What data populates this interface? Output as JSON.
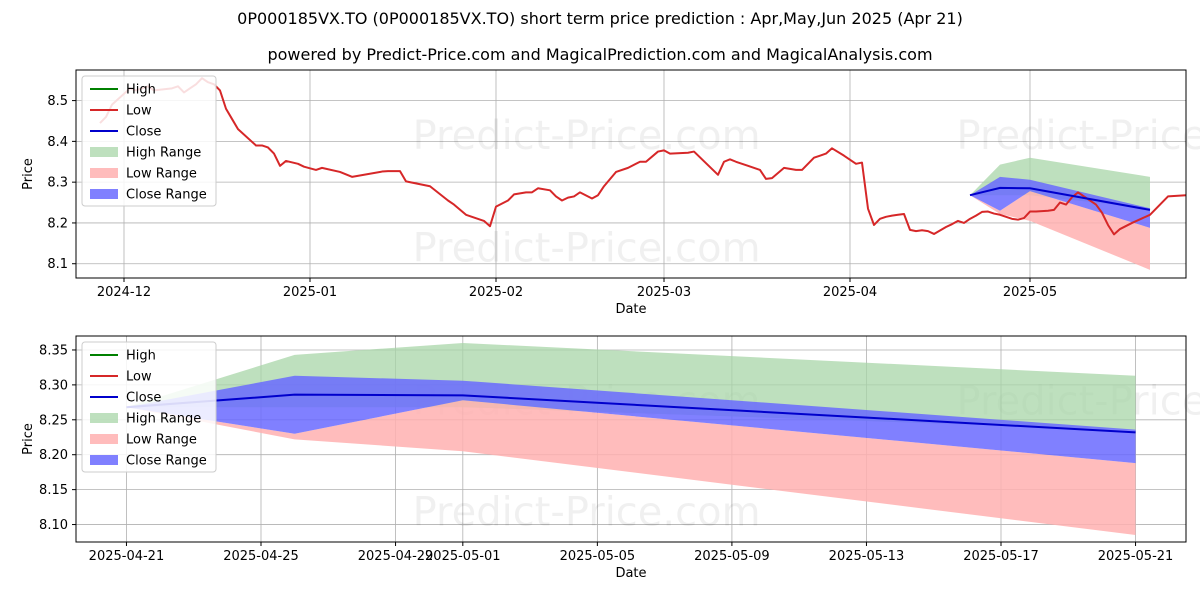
{
  "header": {
    "title": "0P000185VX.TO (0P000185VX.TO) short term price prediction : Apr,May,Jun 2025 (Apr 21)",
    "subtitle": "powered by Predict-Price.com and MagicalPrediction.com and MagicalAnalysis.com"
  },
  "watermark": "Predict-Price.com",
  "colors": {
    "high": "#008000",
    "low": "#d62728",
    "close": "#0000cc",
    "high_range": "#a8d5a8",
    "low_range": "#ffb0b0",
    "close_range": "#6a6aff"
  },
  "chart_data": [
    {
      "type": "line",
      "xlabel": "Date",
      "ylabel": "Price",
      "x_tick_labels": [
        "2024-12",
        "2025-01",
        "2025-02",
        "2025-03",
        "2025-04",
        "2025-05"
      ],
      "x_ticks": [
        "2024-12-01",
        "2025-01-01",
        "2025-02-01",
        "2025-03-01",
        "2025-04-01",
        "2025-05-01"
      ],
      "y_ticks": [
        8.1,
        8.2,
        8.3,
        8.4,
        8.5
      ],
      "xlim": [
        "2024-11-23",
        "2025-05-27"
      ],
      "ylim": [
        8.065,
        8.575
      ],
      "grid": true,
      "legend": {
        "position": "top-left",
        "entries": [
          "High",
          "Low",
          "Close",
          "High Range",
          "Low Range",
          "Close Range"
        ]
      },
      "low_series": {
        "name": "Low",
        "points": [
          [
            "2024-11-27",
            8.445
          ],
          [
            "2024-11-28",
            8.46
          ],
          [
            "2024-11-29",
            8.49
          ],
          [
            "2024-12-02",
            8.53
          ],
          [
            "2024-12-03",
            8.525
          ],
          [
            "2024-12-04",
            8.53
          ],
          [
            "2024-12-05",
            8.535
          ],
          [
            "2024-12-06",
            8.525
          ],
          [
            "2024-12-09",
            8.53
          ],
          [
            "2024-12-10",
            8.535
          ],
          [
            "2024-12-11",
            8.52
          ],
          [
            "2024-12-12",
            8.53
          ],
          [
            "2024-12-13",
            8.54
          ],
          [
            "2024-12-14",
            8.555
          ],
          [
            "2024-12-15",
            8.545
          ],
          [
            "2024-12-16",
            8.54
          ],
          [
            "2024-12-17",
            8.525
          ],
          [
            "2024-12-18",
            8.48
          ],
          [
            "2024-12-19",
            8.455
          ],
          [
            "2024-12-20",
            8.43
          ],
          [
            "2024-12-23",
            8.39
          ],
          [
            "2024-12-24",
            8.39
          ],
          [
            "2024-12-25",
            8.385
          ],
          [
            "2024-12-26",
            8.37
          ],
          [
            "2024-12-27",
            8.34
          ],
          [
            "2024-12-28",
            8.352
          ],
          [
            "2024-12-30",
            8.345
          ],
          [
            "2024-12-31",
            8.338
          ],
          [
            "2025-01-02",
            8.33
          ],
          [
            "2025-01-03",
            8.335
          ],
          [
            "2025-01-06",
            8.325
          ],
          [
            "2025-01-08",
            8.313
          ],
          [
            "2025-01-13",
            8.326
          ],
          [
            "2025-01-14",
            8.327
          ],
          [
            "2025-01-16",
            8.327
          ],
          [
            "2025-01-17",
            8.302
          ],
          [
            "2025-01-21",
            8.29
          ],
          [
            "2025-01-24",
            8.255
          ],
          [
            "2025-01-25",
            8.245
          ],
          [
            "2025-01-27",
            8.22
          ],
          [
            "2025-01-30",
            8.205
          ],
          [
            "2025-01-31",
            8.192
          ],
          [
            "2025-02-01",
            8.24
          ],
          [
            "2025-02-03",
            8.255
          ],
          [
            "2025-02-04",
            8.27
          ],
          [
            "2025-02-06",
            8.275
          ],
          [
            "2025-02-07",
            8.275
          ],
          [
            "2025-02-08",
            8.285
          ],
          [
            "2025-02-10",
            8.28
          ],
          [
            "2025-02-11",
            8.265
          ],
          [
            "2025-02-12",
            8.255
          ],
          [
            "2025-02-13",
            8.262
          ],
          [
            "2025-02-14",
            8.265
          ],
          [
            "2025-02-15",
            8.275
          ],
          [
            "2025-02-17",
            8.26
          ],
          [
            "2025-02-18",
            8.268
          ],
          [
            "2025-02-19",
            8.29
          ],
          [
            "2025-02-21",
            8.325
          ],
          [
            "2025-02-23",
            8.335
          ],
          [
            "2025-02-25",
            8.35
          ],
          [
            "2025-02-26",
            8.35
          ],
          [
            "2025-02-28",
            8.375
          ],
          [
            "2025-03-01",
            8.378
          ],
          [
            "2025-03-02",
            8.37
          ],
          [
            "2025-03-05",
            8.372
          ],
          [
            "2025-03-06",
            8.375
          ],
          [
            "2025-03-10",
            8.318
          ],
          [
            "2025-03-11",
            8.35
          ],
          [
            "2025-03-12",
            8.356
          ],
          [
            "2025-03-13",
            8.35
          ],
          [
            "2025-03-15",
            8.34
          ],
          [
            "2025-03-17",
            8.33
          ],
          [
            "2025-03-18",
            8.308
          ],
          [
            "2025-03-19",
            8.31
          ],
          [
            "2025-03-21",
            8.335
          ],
          [
            "2025-03-23",
            8.33
          ],
          [
            "2025-03-24",
            8.33
          ],
          [
            "2025-03-26",
            8.36
          ],
          [
            "2025-03-27",
            8.365
          ],
          [
            "2025-03-28",
            8.37
          ],
          [
            "2025-03-29",
            8.383
          ],
          [
            "2025-03-31",
            8.365
          ],
          [
            "2025-04-02",
            8.345
          ],
          [
            "2025-04-03",
            8.348
          ],
          [
            "2025-04-04",
            8.235
          ],
          [
            "2025-04-05",
            8.195
          ],
          [
            "2025-04-06",
            8.21
          ],
          [
            "2025-04-07",
            8.215
          ],
          [
            "2025-04-08",
            8.218
          ],
          [
            "2025-04-09",
            8.22
          ],
          [
            "2025-04-10",
            8.222
          ],
          [
            "2025-04-11",
            8.183
          ],
          [
            "2025-04-12",
            8.18
          ],
          [
            "2025-04-13",
            8.182
          ],
          [
            "2025-04-14",
            8.18
          ],
          [
            "2025-04-15",
            8.173
          ],
          [
            "2025-04-17",
            8.19
          ],
          [
            "2025-04-18",
            8.197
          ],
          [
            "2025-04-19",
            8.205
          ],
          [
            "2025-04-20",
            8.2
          ],
          [
            "2025-04-21",
            8.21
          ],
          [
            "2025-04-22",
            8.218
          ],
          [
            "2025-04-23",
            8.227
          ],
          [
            "2025-04-24",
            8.228
          ],
          [
            "2025-04-25",
            8.223
          ],
          [
            "2025-04-26",
            8.22
          ],
          [
            "2025-04-27",
            8.215
          ],
          [
            "2025-04-28",
            8.21
          ],
          [
            "2025-04-29",
            8.208
          ],
          [
            "2025-04-30",
            8.212
          ],
          [
            "2025-05-01",
            8.228
          ],
          [
            "2025-05-02",
            8.228
          ],
          [
            "2025-05-04",
            8.23
          ],
          [
            "2025-05-05",
            8.232
          ],
          [
            "2025-05-06",
            8.25
          ],
          [
            "2025-05-07",
            8.245
          ],
          [
            "2025-05-08",
            8.263
          ],
          [
            "2025-05-09",
            8.275
          ],
          [
            "2025-05-10",
            8.265
          ],
          [
            "2025-05-12",
            8.245
          ],
          [
            "2025-05-13",
            8.225
          ],
          [
            "2025-05-14",
            8.195
          ],
          [
            "2025-05-15",
            8.172
          ],
          [
            "2025-05-16",
            8.185
          ],
          [
            "2025-05-18",
            8.2
          ],
          [
            "2025-05-21",
            8.22
          ],
          [
            "2025-05-24",
            8.265
          ],
          [
            "2025-05-27",
            8.268
          ]
        ]
      }
    },
    {
      "type": "area",
      "xlabel": "Date",
      "ylabel": "Price",
      "x_tick_labels": [
        "2025-04-21",
        "2025-04-25",
        "2025-04-29",
        "2025-05-01",
        "2025-05-05",
        "2025-05-09",
        "2025-05-13",
        "2025-05-17",
        "2025-05-21"
      ],
      "x_ticks": [
        "2025-04-21",
        "2025-04-25",
        "2025-04-29",
        "2025-05-01",
        "2025-05-05",
        "2025-05-09",
        "2025-05-13",
        "2025-05-17",
        "2025-05-21"
      ],
      "y_ticks": [
        8.1,
        8.15,
        8.2,
        8.25,
        8.3,
        8.35
      ],
      "xlim": [
        "2025-04-19.5",
        "2025-05-22.5"
      ],
      "ylim": [
        8.075,
        8.37
      ],
      "grid": true,
      "legend": {
        "position": "top-left",
        "entries": [
          "High",
          "Low",
          "Close",
          "High Range",
          "Low Range",
          "Close Range"
        ]
      },
      "x": [
        "2025-04-21",
        "2025-04-26",
        "2025-05-01",
        "2025-05-21"
      ],
      "close": [
        8.268,
        8.286,
        8.285,
        8.232
      ],
      "high_range": {
        "upper": [
          8.268,
          8.343,
          8.36,
          8.313
        ],
        "lower": [
          8.268,
          8.268,
          8.268,
          8.235
        ]
      },
      "low_range": {
        "upper": [
          8.268,
          8.23,
          8.278,
          8.188
        ],
        "lower": [
          8.268,
          8.222,
          8.205,
          8.085
        ]
      },
      "close_range": {
        "upper": [
          8.268,
          8.313,
          8.306,
          8.236
        ],
        "lower": [
          8.268,
          8.23,
          8.278,
          8.188
        ]
      }
    }
  ]
}
